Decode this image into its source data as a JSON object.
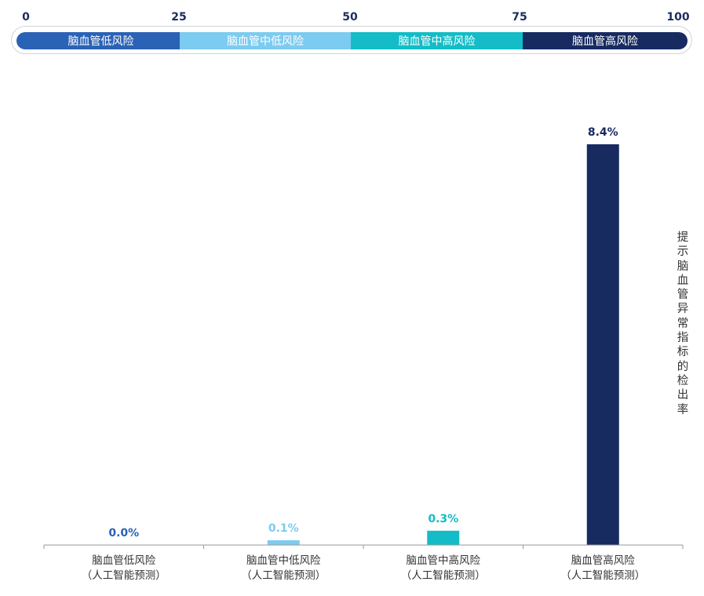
{
  "risk_scale": {
    "ticks": [
      "0",
      "25",
      "50",
      "75",
      "100"
    ],
    "segments": [
      {
        "label": "脑血管低风险",
        "color": "#2a62b5"
      },
      {
        "label": "脑血管中低风险",
        "color": "#7ccbf0"
      },
      {
        "label": "脑血管中高风险",
        "color": "#13bcc6"
      },
      {
        "label": "脑血管高风险",
        "color": "#172b61"
      }
    ]
  },
  "chart_data": {
    "type": "bar",
    "categories": [
      {
        "line1": "脑血管低风险",
        "line2": "（人工智能预测）"
      },
      {
        "line1": "脑血管中低风险",
        "line2": "（人工智能预测）"
      },
      {
        "line1": "脑血管中高风险",
        "line2": "（人工智能预测）"
      },
      {
        "line1": "脑血管高风险",
        "line2": "（人工智能预测）"
      }
    ],
    "values": [
      0.0,
      0.1,
      0.3,
      8.4
    ],
    "value_labels": [
      "0.0%",
      "0.1%",
      "0.3%",
      "8.4%"
    ],
    "colors": [
      "#2a62b5",
      "#7ccbf0",
      "#13bcc6",
      "#172b61"
    ],
    "ylabel": "提示脑血管异常指标的检出率",
    "ylim": [
      0,
      8.4
    ],
    "grid": false
  }
}
